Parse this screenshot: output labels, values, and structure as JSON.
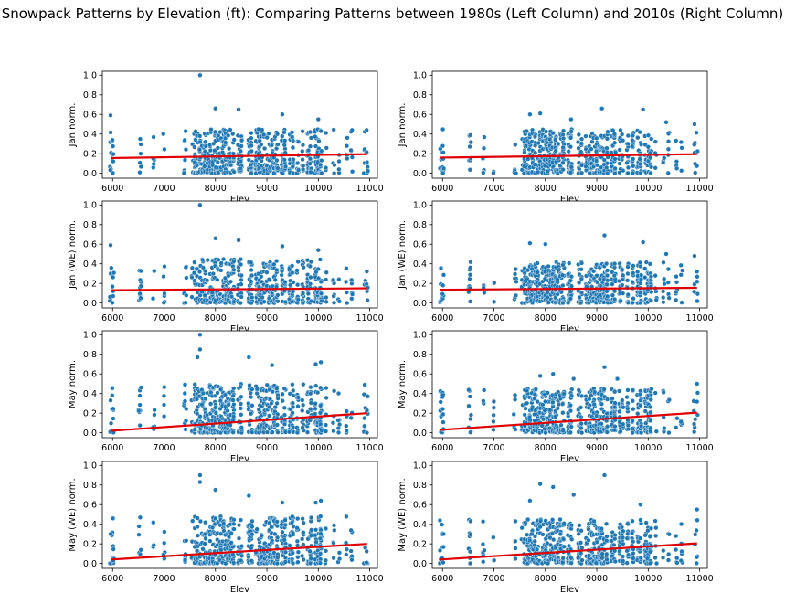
{
  "figure": {
    "title": "Snowpack Patterns by Elevation (ft): Comparing Patterns between 1980s (Left Column) and 2010s (Right Column)"
  },
  "style": {
    "point_color": "#1f77b4",
    "point_edge": "#ffffff",
    "trend_color": "#e00000"
  },
  "chart_data": [
    {
      "type": "scatter",
      "panel": "1980s",
      "ylabel": "Jan norm.",
      "xlabel": "Elev",
      "xlim": [
        5800,
        11150
      ],
      "ylim": [
        -0.05,
        1.04
      ],
      "xticks": [
        6000,
        7000,
        8000,
        9000,
        10000,
        11000
      ],
      "yticks": [
        0.0,
        0.2,
        0.4,
        0.6,
        0.8,
        1.0
      ],
      "trend": {
        "x": [
          5960,
          10950
        ],
        "y": [
          0.155,
          0.195
        ]
      },
      "seed": 11,
      "lo": 0.0,
      "hi": 0.45,
      "outliers": [
        [
          7700,
          1.0
        ],
        [
          8000,
          0.66
        ],
        [
          8450,
          0.65
        ],
        [
          9300,
          0.6
        ],
        [
          10000,
          0.55
        ],
        [
          5960,
          0.59
        ]
      ]
    },
    {
      "type": "scatter",
      "panel": "2010s",
      "ylabel": "Jan norm.",
      "xlabel": "Elev",
      "xlim": [
        5800,
        11150
      ],
      "ylim": [
        -0.05,
        1.04
      ],
      "xticks": [
        6000,
        7000,
        8000,
        9000,
        10000,
        11000
      ],
      "yticks": [
        0.0,
        0.2,
        0.4,
        0.6,
        0.8,
        1.0
      ],
      "trend": {
        "x": [
          5960,
          10950
        ],
        "y": [
          0.16,
          0.195
        ]
      },
      "seed": 21,
      "lo": 0.0,
      "hi": 0.45,
      "outliers": [
        [
          9100,
          0.66
        ],
        [
          9900,
          0.65
        ],
        [
          7700,
          0.6
        ],
        [
          7900,
          0.61
        ],
        [
          8500,
          0.55
        ],
        [
          10350,
          0.52
        ],
        [
          10900,
          0.5
        ]
      ]
    },
    {
      "type": "scatter",
      "panel": "1980s",
      "ylabel": "Jan (WE) norm.",
      "xlabel": "Elev",
      "xlim": [
        5800,
        11150
      ],
      "ylim": [
        -0.05,
        1.04
      ],
      "xticks": [
        6000,
        7000,
        8000,
        9000,
        10000,
        11000
      ],
      "yticks": [
        0.0,
        0.2,
        0.4,
        0.6,
        0.8,
        1.0
      ],
      "trend": {
        "x": [
          5960,
          10950
        ],
        "y": [
          0.13,
          0.15
        ]
      },
      "seed": 31,
      "lo": 0.0,
      "hi": 0.45,
      "outliers": [
        [
          7700,
          1.0
        ],
        [
          8000,
          0.66
        ],
        [
          8450,
          0.64
        ],
        [
          9300,
          0.58
        ],
        [
          10000,
          0.54
        ],
        [
          5960,
          0.59
        ]
      ]
    },
    {
      "type": "scatter",
      "panel": "2010s",
      "ylabel": "Jan (WE) norm.",
      "xlabel": "Elev",
      "xlim": [
        5800,
        11150
      ],
      "ylim": [
        -0.05,
        1.04
      ],
      "xticks": [
        6000,
        7000,
        8000,
        9000,
        10000,
        11000
      ],
      "yticks": [
        0.0,
        0.2,
        0.4,
        0.6,
        0.8,
        1.0
      ],
      "trend": {
        "x": [
          5960,
          10950
        ],
        "y": [
          0.135,
          0.155
        ]
      },
      "seed": 41,
      "lo": 0.0,
      "hi": 0.42,
      "outliers": [
        [
          9150,
          0.69
        ],
        [
          7700,
          0.61
        ],
        [
          8000,
          0.6
        ],
        [
          9900,
          0.62
        ],
        [
          10350,
          0.5
        ],
        [
          10900,
          0.48
        ]
      ]
    },
    {
      "type": "scatter",
      "panel": "1980s",
      "ylabel": "May norm.",
      "xlabel": "Elev",
      "xlim": [
        5800,
        11150
      ],
      "ylim": [
        -0.05,
        1.04
      ],
      "xticks": [
        6000,
        7000,
        8000,
        9000,
        10000,
        11000
      ],
      "yticks": [
        0.0,
        0.2,
        0.4,
        0.6,
        0.8,
        1.0
      ],
      "trend": {
        "x": [
          5960,
          10950
        ],
        "y": [
          0.02,
          0.2
        ]
      },
      "seed": 51,
      "lo": 0.0,
      "hi": 0.5,
      "outliers": [
        [
          7700,
          1.0
        ],
        [
          7700,
          0.85
        ],
        [
          7650,
          0.77
        ],
        [
          8650,
          0.77
        ],
        [
          9100,
          0.69
        ],
        [
          9950,
          0.7
        ],
        [
          10050,
          0.72
        ],
        [
          5960,
          0.33
        ]
      ]
    },
    {
      "type": "scatter",
      "panel": "2010s",
      "ylabel": "May norm.",
      "xlabel": "Elev",
      "xlim": [
        5800,
        11150
      ],
      "ylim": [
        -0.05,
        1.04
      ],
      "xticks": [
        6000,
        7000,
        8000,
        9000,
        10000,
        11000
      ],
      "yticks": [
        0.0,
        0.2,
        0.4,
        0.6,
        0.8,
        1.0
      ],
      "trend": {
        "x": [
          5960,
          10950
        ],
        "y": [
          0.03,
          0.205
        ]
      },
      "seed": 61,
      "lo": 0.0,
      "hi": 0.45,
      "outliers": [
        [
          9150,
          0.67
        ],
        [
          7900,
          0.58
        ],
        [
          8150,
          0.6
        ],
        [
          8550,
          0.55
        ],
        [
          9400,
          0.55
        ],
        [
          10950,
          0.5
        ]
      ]
    },
    {
      "type": "scatter",
      "panel": "1980s",
      "ylabel": "May (WE) norm.",
      "xlabel": "Elev",
      "xlim": [
        5800,
        11150
      ],
      "ylim": [
        -0.05,
        1.04
      ],
      "xticks": [
        6000,
        7000,
        8000,
        9000,
        10000,
        11000
      ],
      "yticks": [
        0.0,
        0.2,
        0.4,
        0.6,
        0.8,
        1.0
      ],
      "trend": {
        "x": [
          5960,
          10950
        ],
        "y": [
          0.04,
          0.2
        ]
      },
      "seed": 71,
      "lo": 0.0,
      "hi": 0.48,
      "outliers": [
        [
          7700,
          0.9
        ],
        [
          7700,
          0.83
        ],
        [
          8000,
          0.75
        ],
        [
          8650,
          0.69
        ],
        [
          9300,
          0.62
        ],
        [
          9950,
          0.62
        ],
        [
          10050,
          0.64
        ],
        [
          5960,
          0.3
        ]
      ]
    },
    {
      "type": "scatter",
      "panel": "2010s",
      "ylabel": "May (WE) norm.",
      "xlabel": "Elev",
      "xlim": [
        5800,
        11150
      ],
      "ylim": [
        -0.05,
        1.04
      ],
      "xticks": [
        6000,
        7000,
        8000,
        9000,
        10000,
        11000
      ],
      "yticks": [
        0.0,
        0.2,
        0.4,
        0.6,
        0.8,
        1.0
      ],
      "trend": {
        "x": [
          5960,
          10950
        ],
        "y": [
          0.04,
          0.205
        ]
      },
      "seed": 81,
      "lo": 0.0,
      "hi": 0.45,
      "outliers": [
        [
          9150,
          0.9
        ],
        [
          7900,
          0.81
        ],
        [
          8150,
          0.78
        ],
        [
          8550,
          0.7
        ],
        [
          7700,
          0.64
        ],
        [
          9850,
          0.6
        ],
        [
          10950,
          0.55
        ]
      ]
    }
  ]
}
